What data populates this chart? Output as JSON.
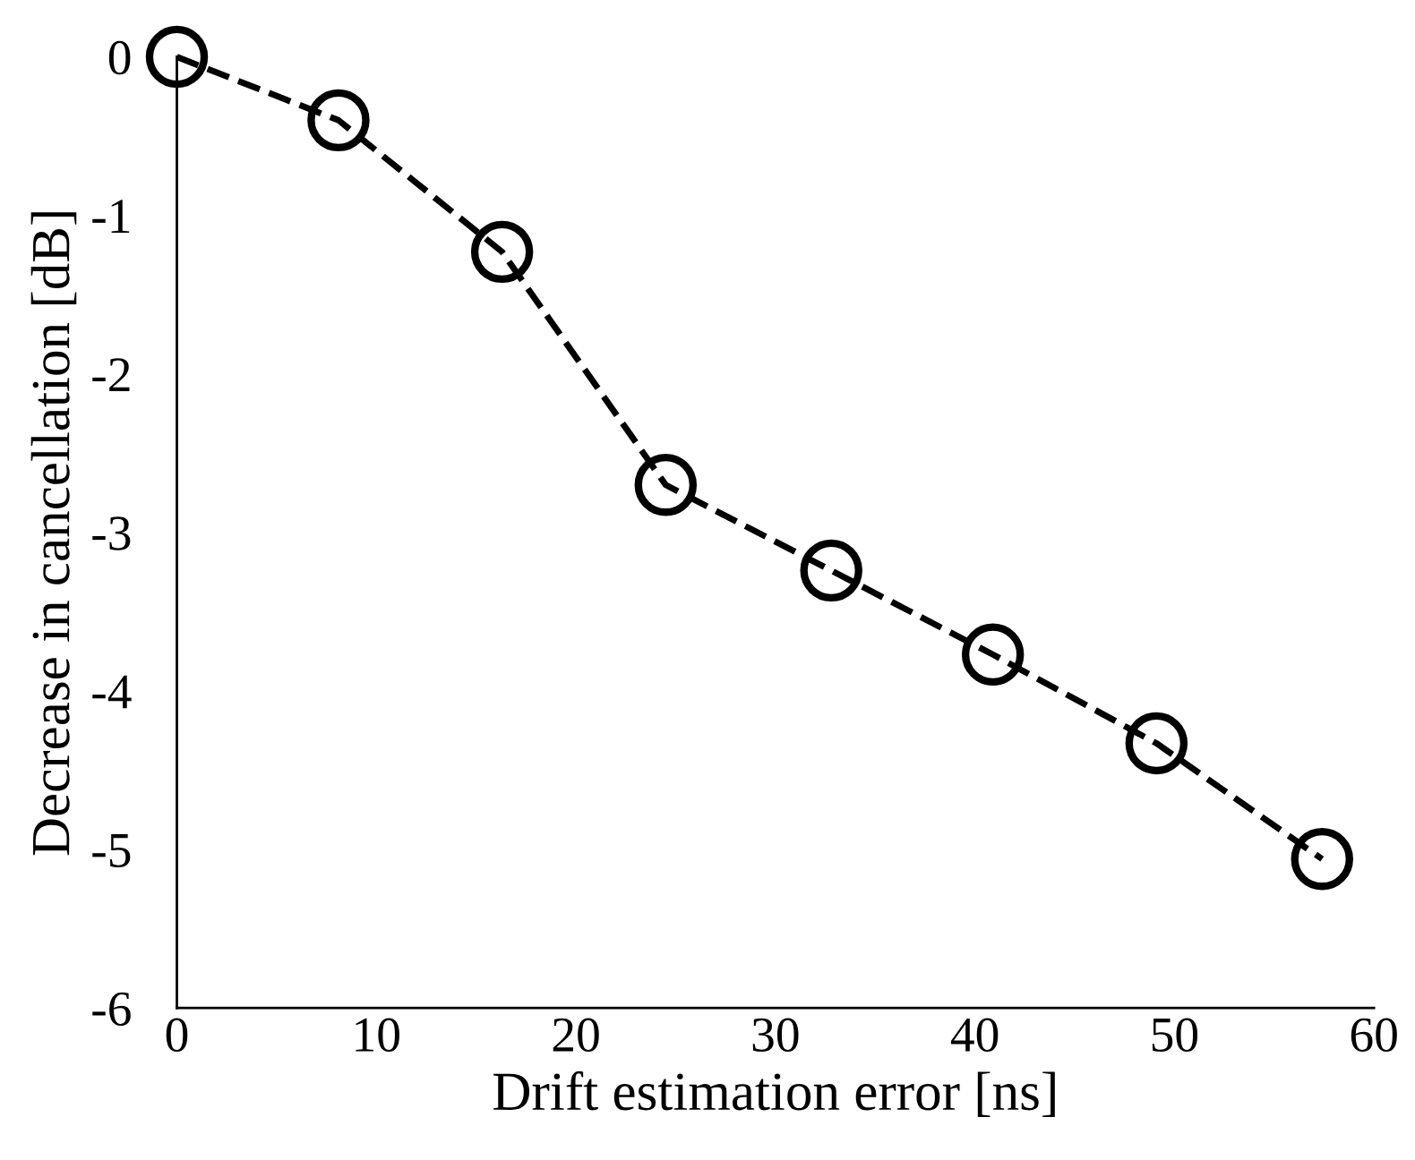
{
  "chart_data": {
    "type": "line",
    "xlabel": "Drift estimation error [ns]",
    "ylabel": "Decrease in cancellation [dB]",
    "series": [
      {
        "color": "#000000",
        "x": [
          0,
          8.1,
          16.3,
          24.5,
          32.8,
          40.9,
          49.1,
          57.4
        ],
        "values": [
          0,
          -0.4,
          -1.23,
          -2.7,
          -3.24,
          -3.77,
          -4.33,
          -5.06
        ]
      }
    ],
    "xlim": [
      0,
      60
    ],
    "xticks": [
      0,
      10,
      20,
      30,
      40,
      50,
      60
    ],
    "ylim": [
      -6,
      0
    ],
    "yticks": [
      -6,
      -5,
      -4,
      -3,
      -2,
      -1,
      0
    ],
    "marker": "circle",
    "line_style": "dashed",
    "grid": false,
    "legend": false
  }
}
